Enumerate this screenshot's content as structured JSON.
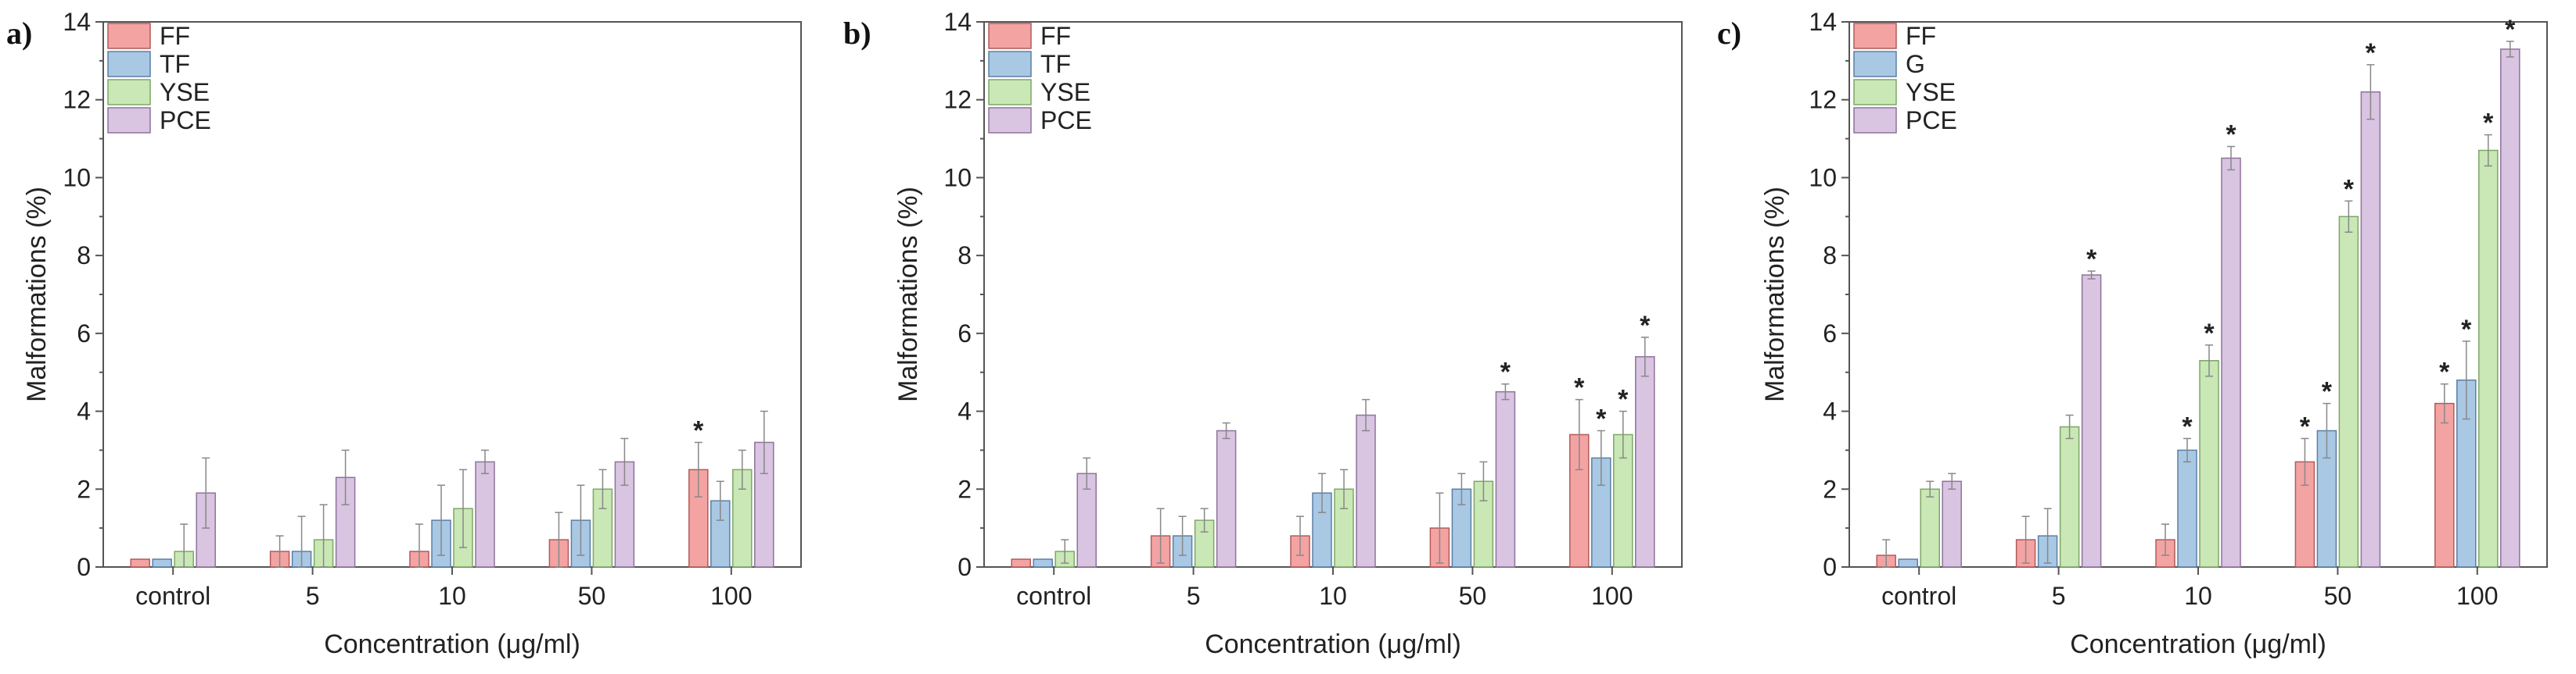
{
  "chart_data": [
    {
      "panel_label": "a)",
      "type": "bar",
      "categories": [
        "control",
        "5",
        "10",
        "50",
        "100"
      ],
      "series": [
        {
          "name": "FF",
          "values": [
            0.2,
            0.4,
            0.4,
            0.7,
            2.5
          ],
          "errors": [
            0.0,
            0.4,
            0.7,
            0.7,
            0.7
          ],
          "color": "#f4a3a3",
          "stroke": "#b25a5a"
        },
        {
          "name": "TF",
          "values": [
            0.2,
            0.4,
            1.2,
            1.2,
            1.7
          ],
          "errors": [
            0.0,
            0.9,
            0.9,
            0.9,
            0.5
          ],
          "color": "#a9c8e4",
          "stroke": "#5a7fa5"
        },
        {
          "name": "YSE",
          "values": [
            0.4,
            0.7,
            1.5,
            2.0,
            2.5
          ],
          "errors": [
            0.7,
            0.9,
            1.0,
            0.5,
            0.5
          ],
          "color": "#c9e8b5",
          "stroke": "#7ea667"
        },
        {
          "name": "PCE",
          "values": [
            1.9,
            2.3,
            2.7,
            2.7,
            3.2
          ],
          "errors": [
            0.9,
            0.7,
            0.3,
            0.6,
            0.8
          ],
          "color": "#d9c4e2",
          "stroke": "#8e7399"
        }
      ],
      "significance": [
        {
          "category_index": 4,
          "series_index": 0,
          "label": "*"
        }
      ],
      "xlabel": "Concentration (μg/ml)",
      "ylabel": "Malformations (%)",
      "ylim": [
        0,
        14
      ],
      "yticks": [
        "0",
        "2",
        "4",
        "6",
        "8",
        "10",
        "12",
        "14"
      ],
      "legend_position": "top-left"
    },
    {
      "panel_label": "b)",
      "type": "bar",
      "categories": [
        "control",
        "5",
        "10",
        "50",
        "100"
      ],
      "series": [
        {
          "name": "FF",
          "values": [
            0.2,
            0.8,
            0.8,
            1.0,
            3.4
          ],
          "errors": [
            0.0,
            0.7,
            0.5,
            0.9,
            0.9
          ],
          "color": "#f4a3a3",
          "stroke": "#b25a5a"
        },
        {
          "name": "TF",
          "values": [
            0.2,
            0.8,
            1.9,
            2.0,
            2.8
          ],
          "errors": [
            0.0,
            0.5,
            0.5,
            0.4,
            0.7
          ],
          "color": "#a9c8e4",
          "stroke": "#5a7fa5"
        },
        {
          "name": "YSE",
          "values": [
            0.4,
            1.2,
            2.0,
            2.2,
            3.4
          ],
          "errors": [
            0.3,
            0.3,
            0.5,
            0.5,
            0.6
          ],
          "color": "#c9e8b5",
          "stroke": "#7ea667"
        },
        {
          "name": "PCE",
          "values": [
            2.4,
            3.5,
            3.9,
            4.5,
            5.4
          ],
          "errors": [
            0.4,
            0.2,
            0.4,
            0.2,
            0.5
          ],
          "color": "#d9c4e2",
          "stroke": "#8e7399"
        }
      ],
      "significance": [
        {
          "category_index": 3,
          "series_index": 3,
          "label": "*"
        },
        {
          "category_index": 4,
          "series_index": 0,
          "label": "*"
        },
        {
          "category_index": 4,
          "series_index": 1,
          "label": "*"
        },
        {
          "category_index": 4,
          "series_index": 2,
          "label": "*"
        },
        {
          "category_index": 4,
          "series_index": 3,
          "label": "*"
        }
      ],
      "xlabel": "Concentration (μg/ml)",
      "ylabel": "Malformations (%)",
      "ylim": [
        0,
        14
      ],
      "yticks": [
        "0",
        "2",
        "4",
        "6",
        "8",
        "10",
        "12",
        "14"
      ],
      "legend_position": "top-left"
    },
    {
      "panel_label": "c)",
      "type": "bar",
      "categories": [
        "control",
        "5",
        "10",
        "50",
        "100"
      ],
      "series": [
        {
          "name": "FF",
          "values": [
            0.3,
            0.7,
            0.7,
            2.7,
            4.2
          ],
          "errors": [
            0.4,
            0.6,
            0.4,
            0.6,
            0.5
          ],
          "color": "#f4a3a3",
          "stroke": "#b25a5a"
        },
        {
          "name": "G",
          "values": [
            0.2,
            0.8,
            3.0,
            3.5,
            4.8
          ],
          "errors": [
            0.0,
            0.7,
            0.3,
            0.7,
            1.0
          ],
          "color": "#a9c8e4",
          "stroke": "#5a7fa5"
        },
        {
          "name": "YSE",
          "values": [
            2.0,
            3.6,
            5.3,
            9.0,
            10.7
          ],
          "errors": [
            0.2,
            0.3,
            0.4,
            0.4,
            0.4
          ],
          "color": "#c9e8b5",
          "stroke": "#7ea667"
        },
        {
          "name": "PCE",
          "values": [
            2.2,
            7.5,
            10.5,
            12.2,
            13.3
          ],
          "errors": [
            0.2,
            0.1,
            0.3,
            0.7,
            0.2
          ],
          "color": "#d9c4e2",
          "stroke": "#8e7399"
        }
      ],
      "significance": [
        {
          "category_index": 1,
          "series_index": 3,
          "label": "*"
        },
        {
          "category_index": 2,
          "series_index": 1,
          "label": "*"
        },
        {
          "category_index": 2,
          "series_index": 2,
          "label": "*"
        },
        {
          "category_index": 2,
          "series_index": 3,
          "label": "*"
        },
        {
          "category_index": 3,
          "series_index": 0,
          "label": "*"
        },
        {
          "category_index": 3,
          "series_index": 1,
          "label": "*"
        },
        {
          "category_index": 3,
          "series_index": 2,
          "label": "*"
        },
        {
          "category_index": 3,
          "series_index": 3,
          "label": "*"
        },
        {
          "category_index": 4,
          "series_index": 0,
          "label": "*"
        },
        {
          "category_index": 4,
          "series_index": 1,
          "label": "*"
        },
        {
          "category_index": 4,
          "series_index": 2,
          "label": "*"
        },
        {
          "category_index": 4,
          "series_index": 3,
          "label": "*"
        }
      ],
      "xlabel": "Concentration (μg/ml)",
      "ylabel": "Malformations (%)",
      "ylim": [
        0,
        14
      ],
      "yticks": [
        "0",
        "2",
        "4",
        "6",
        "8",
        "10",
        "12",
        "14"
      ],
      "legend_position": "top-left"
    }
  ]
}
